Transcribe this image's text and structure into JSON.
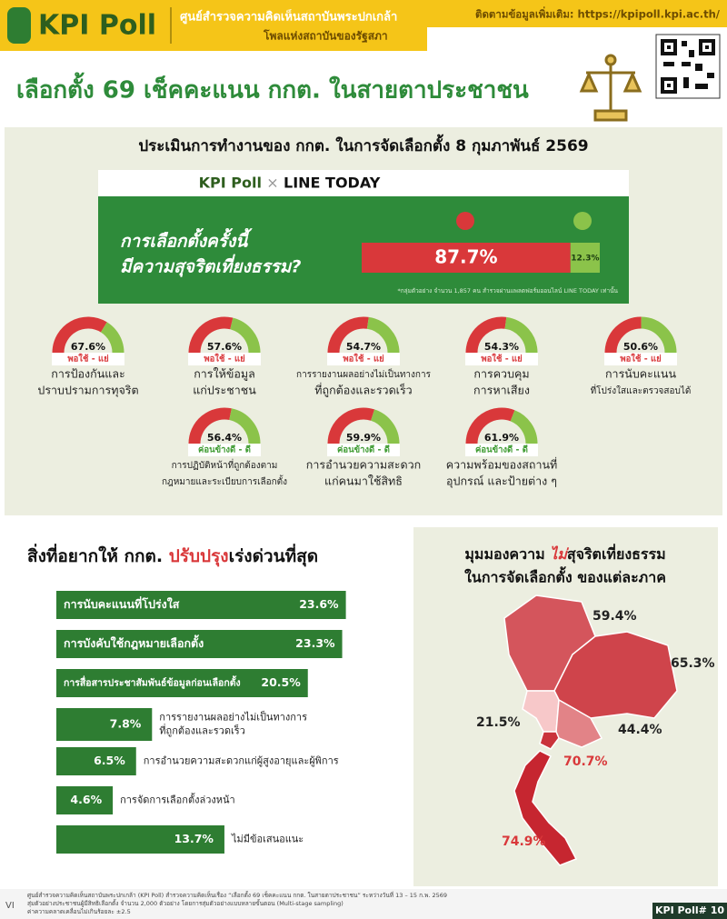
{
  "header": {
    "logo": "KPI Poll",
    "org_name": "ศูนย์สำรวจความคิดเห็นสถาบันพระปกเกล้า",
    "org_sub": "โพลแห่งสถาบันของรัฐสภา",
    "contact": "ติดตามข้อมูลเพิ่มเติม: https://kpipoll.kpi.ac.th/"
  },
  "title": "เลือกตั้ง 69 เช็คคะแนน กกต. ในสายตาประชาชน",
  "evaluation": {
    "heading": "ประเมินการทำงานของ กกต. ในการจัดเลือกตั้ง 8 กุมภาพันธ์ 2569",
    "banner": {
      "brand": "KPI Poll",
      "cross": "×",
      "partner": "LINE TODAY"
    },
    "question": [
      "การเลือกตั้งครั้งนี้",
      "มีความสุจริตเที่ยงธรรม?"
    ],
    "no_value": 87.7,
    "no_label": "87.7%",
    "yes_value": 12.3,
    "yes_label": "12.3%",
    "note": "*กลุ่มตัวอย่าง จำนวน 1,857 คน สำรวจผ่านแพลตฟอร์มออนไลน์ LINE TODAY เท่านั้น",
    "gauges": [
      {
        "value": 67.6,
        "value_label": "67.6%",
        "rating": "พอใช้ - แย่",
        "label": [
          "การป้องกันและ",
          "ปราบปรามการทุจริต"
        ]
      },
      {
        "value": 57.6,
        "value_label": "57.6%",
        "rating": "พอใช้ - แย่",
        "label": [
          "การให้ข้อมูล",
          "แก่ประชาชน"
        ]
      },
      {
        "value": 54.7,
        "value_label": "54.7%",
        "rating": "พอใช้ - แย่",
        "label": [
          "การรายงานผลอย่างไม่เป็นทางการ",
          "ที่ถูกต้องและรวดเร็ว"
        ]
      },
      {
        "value": 54.3,
        "value_label": "54.3%",
        "rating": "พอใช้ - แย่",
        "label": [
          "การควบคุม",
          "การหาเสียง"
        ]
      },
      {
        "value": 50.6,
        "value_label": "50.6%",
        "rating": "พอใช้ - แย่",
        "label": [
          "การนับคะแนน",
          "ที่โปร่งใสและตรวจสอบได้"
        ]
      },
      {
        "value": 56.4,
        "value_label": "56.4%",
        "rating": "ค่อนข้างดี - ดี",
        "label": [
          "การปฏิบัติหน้าที่ถูกต้องตาม",
          "กฎหมายและระเบียบการเลือกตั้ง"
        ]
      },
      {
        "value": 59.9,
        "value_label": "59.9%",
        "rating": "ค่อนข้างดี - ดี",
        "label": [
          "การอำนวยความสะดวก",
          "แก่คนมาใช้สิทธิ"
        ]
      },
      {
        "value": 61.9,
        "value_label": "61.9%",
        "rating": "ค่อนข้างดี - ดี",
        "label": [
          "ความพร้อมของสถานที่",
          "อุปกรณ์ และป้ายต่าง ๆ"
        ]
      }
    ]
  },
  "improvements": {
    "heading": [
      "สิ่งที่อยากให้ กกต. ",
      "ปรับปรุง",
      "เร่งด่วนที่สุด"
    ],
    "items": [
      {
        "label": [
          "การนับคะแนนที่โปร่งใส"
        ],
        "value": 23.6,
        "value_label": "23.6%"
      },
      {
        "label": [
          "การบังคับใช้กฎหมายเลือกตั้ง"
        ],
        "value": 23.3,
        "value_label": "23.3%"
      },
      {
        "label": [
          "การสื่อสารประชาสัมพันธ์ข้อมูลก่อนเลือกตั้ง"
        ],
        "value": 20.5,
        "value_label": "20.5%"
      },
      {
        "label": [
          "การรายงานผลอย่างไม่เป็นทางการ",
          "ที่ถูกต้องและรวดเร็ว"
        ],
        "value": 7.8,
        "value_label": "7.8%"
      },
      {
        "label": [
          "การอำนวยความสะดวกแก่ผู้สูงอายุและผู้พิการ"
        ],
        "value": 6.5,
        "value_label": "6.5%"
      },
      {
        "label": [
          "การจัดการเลือกตั้งล่วงหน้า"
        ],
        "value": 4.6,
        "value_label": "4.6%"
      },
      {
        "label": [
          "ไม่มีข้อเสนอแนะ"
        ],
        "value": 13.7,
        "value_label": "13.7%"
      }
    ]
  },
  "regions": {
    "heading": [
      "มุมมองความ ",
      "ไม่",
      "สุจริตเที่ยงธรรม",
      "ในการจัดเลือกตั้ง ของแต่ละภาค"
    ],
    "items": [
      {
        "value": 59.4,
        "value_label": "59.4%"
      },
      {
        "value": 65.3,
        "value_label": "65.3%"
      },
      {
        "value": 21.5,
        "value_label": "21.5%"
      },
      {
        "value": 44.4,
        "value_label": "44.4%"
      },
      {
        "value": 70.7,
        "value_label": "70.7%"
      },
      {
        "value": 74.9,
        "value_label": "74.9%"
      }
    ]
  },
  "footer": {
    "notes": [
      "ศูนย์สำรวจความคิดเห็นสถาบันพระปกเกล้า (KPI Poll) สำรวจความคิดเห็นเรื่อง “เลือกตั้ง 69 เช็คคะแนน กกต. ในสายตาประชาชน” ระหว่างวันที่ 13 – 15 ก.พ. 2569",
      "สุ่มตัวอย่างประชาชนผู้มีสิทธิเลือกตั้ง จำนวน 2,000 ตัวอย่าง โดยการสุ่มตัวอย่างแบบหลายขั้นตอน (Multi-stage sampling)",
      "ค่าความคลาดเคลื่อนไม่เกินร้อยละ ±2.5"
    ],
    "mark": "VI",
    "issue": "KPI Poll# 10"
  }
}
